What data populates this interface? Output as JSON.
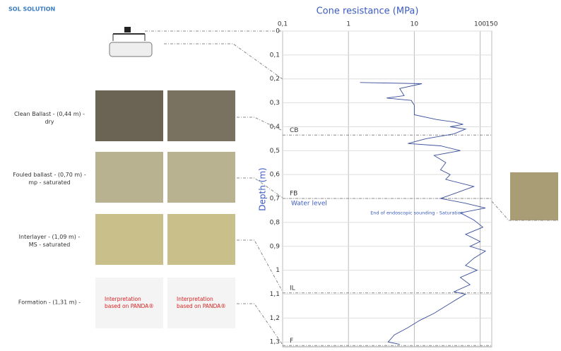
{
  "brand": "SOL SOLUTION",
  "chart_data": {
    "type": "line",
    "title": "Cone resistance (MPa)",
    "y_label": "Depth (m)",
    "log_x": true,
    "grid": true,
    "color": "#3a4f9a",
    "xlim": [
      0.1,
      150
    ],
    "xticks": [
      {
        "value": 0.1,
        "label": "0,1"
      },
      1,
      10,
      100,
      150
    ],
    "ylim": [
      0,
      1.32
    ],
    "yticks": [
      0,
      {
        "value": 0.1,
        "label": "0,1"
      },
      {
        "value": 0.2,
        "label": "0,2"
      },
      {
        "value": 0.3,
        "label": "0,3"
      },
      {
        "value": 0.4,
        "label": "0,4"
      },
      {
        "value": 0.5,
        "label": "0,5"
      },
      {
        "value": 0.6,
        "label": "0,6"
      },
      {
        "value": 0.7,
        "label": "0,7"
      },
      {
        "value": 0.8,
        "label": "0,8"
      },
      {
        "value": 0.9,
        "label": "0,9"
      },
      1,
      {
        "value": 1.1,
        "label": "1,1"
      },
      {
        "value": 1.2,
        "label": "1,2"
      },
      {
        "value": 1.3,
        "label": "1,3"
      }
    ],
    "x": [
      1.5,
      13,
      6,
      7,
      3.8,
      9,
      10,
      10,
      22,
      40,
      55,
      35,
      60,
      40,
      15,
      8,
      25,
      50,
      20,
      30,
      25,
      35,
      30,
      80,
      40,
      25,
      60,
      120,
      50,
      80,
      110,
      60,
      100,
      70,
      120,
      80,
      60,
      90,
      50,
      70,
      40,
      60,
      45,
      30,
      20,
      12,
      8,
      5,
      4,
      6
    ],
    "values": [
      0.215,
      0.22,
      0.24,
      0.27,
      0.28,
      0.29,
      0.31,
      0.35,
      0.37,
      0.38,
      0.39,
      0.4,
      0.41,
      0.43,
      0.45,
      0.47,
      0.48,
      0.5,
      0.52,
      0.55,
      0.58,
      0.6,
      0.62,
      0.65,
      0.68,
      0.7,
      0.72,
      0.74,
      0.76,
      0.79,
      0.82,
      0.85,
      0.88,
      0.9,
      0.92,
      0.95,
      0.98,
      1.0,
      1.03,
      1.06,
      1.09,
      1.1,
      1.12,
      1.15,
      1.18,
      1.21,
      1.24,
      1.27,
      1.3,
      1.31
    ],
    "layers": [
      {
        "label": "CB",
        "depth": 0.435
      },
      {
        "label": "FB",
        "depth": 0.7
      },
      {
        "label": "IL",
        "depth": 1.095
      },
      {
        "label": "F",
        "depth": 1.315
      }
    ],
    "annotations": [
      "Water level",
      "End of endoscopic sounding - Saturation"
    ]
  },
  "samples": [
    {
      "label": "Clean Ballast  - (0,44 m) - dry"
    },
    {
      "label": "Fouled ballast  - (0,70 m) - mp - saturated"
    },
    {
      "label": "Interlayer  - (1,09 m) - MS - saturated"
    },
    {
      "label": "Formation  - (1,31 m) -",
      "notes": [
        "Interpretation based on PANDA®",
        "Interpretation based on PANDA®"
      ]
    }
  ]
}
